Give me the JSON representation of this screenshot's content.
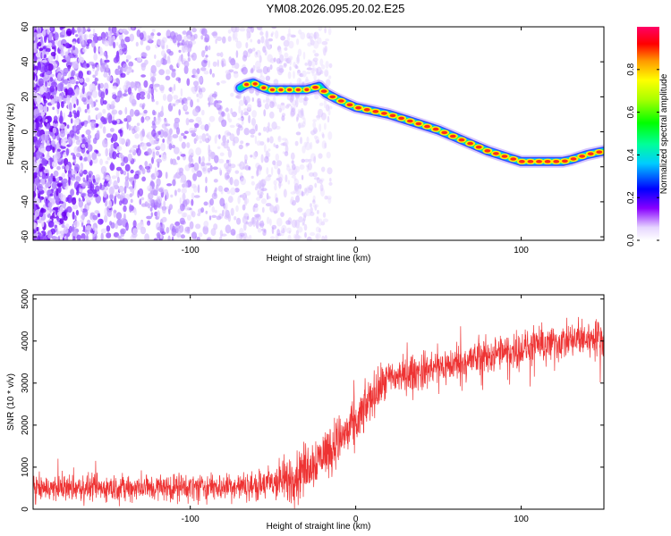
{
  "title": "YM08.2026.095.20.02.E25",
  "chart_data": [
    {
      "type": "heatmap",
      "name": "spectrogram",
      "xlabel": "Height of straight line (km)",
      "ylabel": "Frequency (Hz)",
      "xlim": [
        -195,
        150
      ],
      "ylim": [
        -62,
        60
      ],
      "xticks": [
        -100,
        0,
        100
      ],
      "yticks": [
        -60,
        -40,
        -20,
        0,
        20,
        40,
        60
      ],
      "ridge": {
        "description": "dominant frequency track (x km, y Hz)",
        "x": [
          -70,
          -66,
          -62,
          -58,
          -52,
          -40,
          -30,
          -22,
          -18,
          -12,
          -5,
          0,
          10,
          20,
          30,
          40,
          50,
          60,
          70,
          80,
          90,
          100,
          110,
          120,
          125,
          130,
          140,
          150
        ],
        "y": [
          25,
          27,
          28,
          26,
          24,
          24,
          24,
          26,
          22,
          19,
          16,
          14,
          12,
          10,
          7,
          4,
          1,
          -3,
          -7,
          -11,
          -14,
          -17,
          -17,
          -17,
          -17,
          -16,
          -13,
          -11
        ]
      },
      "noise_region": {
        "x_from": -195,
        "x_to": -15
      },
      "colorbar": {
        "label": "Normalized spectral amplitude",
        "ticks": [
          0.0,
          0.2,
          0.4,
          0.6,
          0.8
        ],
        "tick_labels": [
          "0.0",
          "0.2",
          "0.4",
          "0.6",
          "0.8"
        ],
        "range": [
          0,
          1
        ]
      }
    },
    {
      "type": "line",
      "name": "snr",
      "xlabel": "Height of straight line (km)",
      "ylabel": "SNR (10 * v/v)",
      "xlim": [
        -195,
        150
      ],
      "ylim": [
        0,
        5100
      ],
      "xticks": [
        -100,
        0,
        100
      ],
      "yticks": [
        0,
        1000,
        2000,
        3000,
        4000,
        5000
      ],
      "color": "#ee3333",
      "trend": {
        "x": [
          -195,
          -150,
          -100,
          -60,
          -40,
          -20,
          0,
          10,
          20,
          40,
          60,
          80,
          100,
          120,
          150
        ],
        "y": [
          500,
          500,
          520,
          550,
          700,
          1300,
          2000,
          2700,
          3100,
          3300,
          3450,
          3650,
          3800,
          3950,
          4100
        ]
      },
      "spread": {
        "x": [
          -195,
          -60,
          -40,
          0,
          20,
          150
        ],
        "y": [
          450,
          500,
          900,
          900,
          650,
          650
        ]
      }
    }
  ]
}
